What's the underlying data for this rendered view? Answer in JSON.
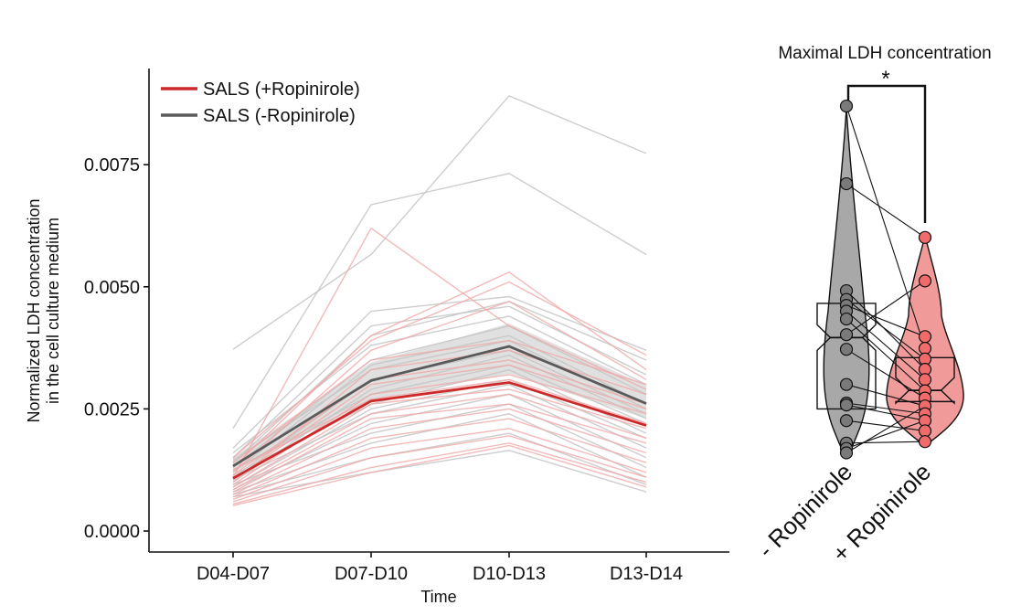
{
  "chart_data": [
    {
      "type": "line",
      "xlabel": "Time",
      "ylabel_line1": "Normalized LDH concentration",
      "ylabel_line2": "in the cell culture medium",
      "categories": [
        "D04-D07",
        "D07-D10",
        "D10-D13",
        "D13-D14"
      ],
      "y_ticks": [
        "0.0000",
        "0.0025",
        "0.0050",
        "0.0075"
      ],
      "ylim": [
        0,
        0.0095
      ],
      "legend_position": "top-left",
      "grid": false,
      "colors": {
        "plus": "#cc2a2a",
        "minus": "#5a5a5a",
        "plus_light": "#f0a8a8",
        "minus_light": "#c4c4c4",
        "band": "#d6d6d6"
      },
      "series": [
        {
          "name": "SALS (+Ropinirole)",
          "key": "plus",
          "values": [
            0.00108,
            0.00266,
            0.00304,
            0.00216
          ]
        },
        {
          "name": "SALS (-Ropinirole)",
          "key": "minus",
          "values": [
            0.00133,
            0.00308,
            0.00378,
            0.00261
          ]
        }
      ],
      "band_minus": {
        "lower": [
          0.0012,
          0.00268,
          0.00322,
          0.0023
        ],
        "upper": [
          0.0015,
          0.00345,
          0.00425,
          0.00298
        ]
      },
      "individual_minus": [
        [
          0.00372,
          0.00566,
          0.00891,
          0.00773
        ],
        [
          0.0021,
          0.00668,
          0.00732,
          0.00566
        ],
        [
          0.0017,
          0.0045,
          0.0048,
          0.0037
        ],
        [
          0.0015,
          0.0042,
          0.0046,
          0.0032
        ],
        [
          0.0014,
          0.004,
          0.0047,
          0.0035
        ],
        [
          0.0016,
          0.0038,
          0.0044,
          0.003
        ],
        [
          0.0013,
          0.0035,
          0.0042,
          0.0028
        ],
        [
          0.0012,
          0.0034,
          0.004,
          0.0026
        ],
        [
          0.00145,
          0.0033,
          0.0039,
          0.0025
        ],
        [
          0.0011,
          0.0031,
          0.0037,
          0.0024
        ],
        [
          0.001,
          0.0029,
          0.0036,
          0.0023
        ],
        [
          0.00125,
          0.0028,
          0.0034,
          0.0022
        ],
        [
          0.00115,
          0.0026,
          0.0033,
          0.002
        ],
        [
          0.0009,
          0.0025,
          0.0031,
          0.0019
        ],
        [
          0.00105,
          0.0024,
          0.003,
          0.0017
        ],
        [
          0.00085,
          0.0022,
          0.0028,
          0.0015
        ],
        [
          0.00095,
          0.002,
          0.0026,
          0.0013
        ],
        [
          0.0008,
          0.0018,
          0.0024,
          0.0011
        ],
        [
          0.00075,
          0.0015,
          0.002,
          0.00095
        ],
        [
          0.0007,
          0.0012,
          0.00165,
          0.0008
        ]
      ],
      "individual_plus": [
        [
          0.0011,
          0.0062,
          0.0042,
          0.0029
        ],
        [
          0.0013,
          0.004,
          0.0053,
          0.0033
        ],
        [
          0.0015,
          0.0039,
          0.0051,
          0.0036
        ],
        [
          0.0012,
          0.0037,
          0.0047,
          0.0031
        ],
        [
          0.0014,
          0.0035,
          0.0039,
          0.003
        ],
        [
          0.001,
          0.0033,
          0.0037,
          0.0028
        ],
        [
          0.00115,
          0.0031,
          0.0035,
          0.0026
        ],
        [
          0.00105,
          0.003,
          0.0034,
          0.0025
        ],
        [
          0.00095,
          0.0028,
          0.0032,
          0.0024
        ],
        [
          0.00125,
          0.0027,
          0.0031,
          0.0022
        ],
        [
          0.0009,
          0.0026,
          0.0029,
          0.0021
        ],
        [
          0.00085,
          0.0024,
          0.0028,
          0.0019
        ],
        [
          0.0008,
          0.0023,
          0.0026,
          0.0018
        ],
        [
          0.00075,
          0.0021,
          0.0025,
          0.0016
        ],
        [
          0.0007,
          0.0019,
          0.0023,
          0.0014
        ],
        [
          0.00065,
          0.0017,
          0.0021,
          0.0012
        ],
        [
          0.0006,
          0.0015,
          0.00195,
          0.0011
        ],
        [
          0.00055,
          0.0013,
          0.0018,
          0.001
        ],
        [
          0.00052,
          0.0012,
          0.00175,
          0.0009
        ]
      ]
    },
    {
      "type": "violin",
      "title": "Maximal LDH concentration",
      "significance": "*",
      "categories": [
        "- Ropinirole",
        "+ Ropinirole"
      ],
      "colors": {
        "minus_fill": "#a8a8a8",
        "minus_point": "#7a7a7a",
        "plus_fill": "#f19a9a",
        "plus_point": "#f26b6b"
      },
      "minus_points": [
        0.0087,
        0.00711,
        0.00492,
        0.00474,
        0.00462,
        0.0045,
        0.00434,
        0.00402,
        0.00372,
        0.003,
        0.00262,
        0.00258,
        0.00226,
        0.0018,
        0.00169,
        0.0016
      ],
      "plus_points": [
        0.00601,
        0.00512,
        0.00398,
        0.00374,
        0.00352,
        0.00331,
        0.0031,
        0.00287,
        0.00272,
        0.00256,
        0.0024,
        0.00226,
        0.00205,
        0.00183
      ],
      "minus_box": {
        "q1": 0.0025,
        "median": 0.00396,
        "q3": 0.00466
      },
      "plus_box": {
        "q1": 0.00265,
        "median": 0.00288,
        "q3": 0.00355
      },
      "pairs": [
        [
          0,
          3
        ],
        [
          1,
          0
        ],
        [
          2,
          5
        ],
        [
          3,
          4
        ],
        [
          4,
          2
        ],
        [
          5,
          6
        ],
        [
          6,
          7
        ],
        [
          7,
          1
        ],
        [
          8,
          8
        ],
        [
          9,
          9
        ],
        [
          10,
          10
        ],
        [
          11,
          11
        ],
        [
          12,
          12
        ],
        [
          13,
          13
        ],
        [
          14,
          11
        ],
        [
          15,
          9
        ]
      ]
    }
  ]
}
